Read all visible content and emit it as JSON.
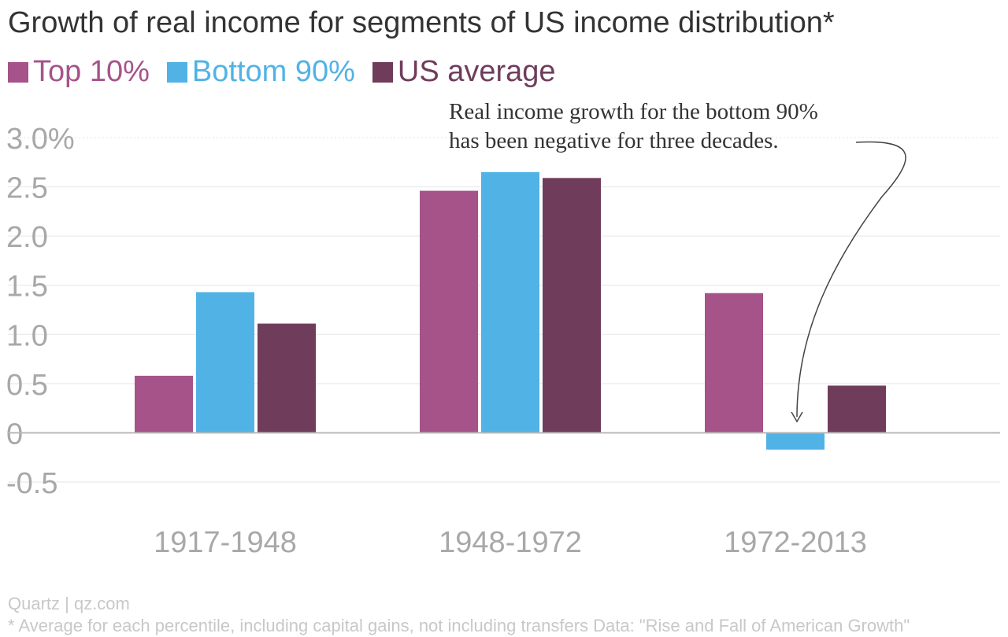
{
  "chart_data": {
    "type": "bar",
    "title": "Growth of real income for segments of US income distribution*",
    "categories": [
      "1917-1948",
      "1948-1972",
      "1972-2013"
    ],
    "series": [
      {
        "name": "Top 10%",
        "color": "#a6538a",
        "values": [
          0.58,
          2.46,
          1.42
        ]
      },
      {
        "name": "Bottom 90%",
        "color": "#51b2e5",
        "values": [
          1.43,
          2.65,
          -0.17
        ]
      },
      {
        "name": "US average",
        "color": "#703c5c",
        "values": [
          1.11,
          2.59,
          0.48
        ]
      }
    ],
    "y_ticks": [
      "3.0%",
      "2.5",
      "2.0",
      "1.5",
      "1.0",
      "0.5",
      "0",
      "-0.5"
    ],
    "ylim": [
      -0.5,
      3.0
    ],
    "legend": "top-left",
    "grid": true,
    "annotation": {
      "lines": [
        "Real income growth for the bottom 90%",
        "has been negative for three decades."
      ]
    }
  },
  "footer": {
    "source": "Quartz | qz.com",
    "note": "* Average for each percentile, including capital gains, not including transfers Data: \"Rise and Fall of American Growth\""
  }
}
